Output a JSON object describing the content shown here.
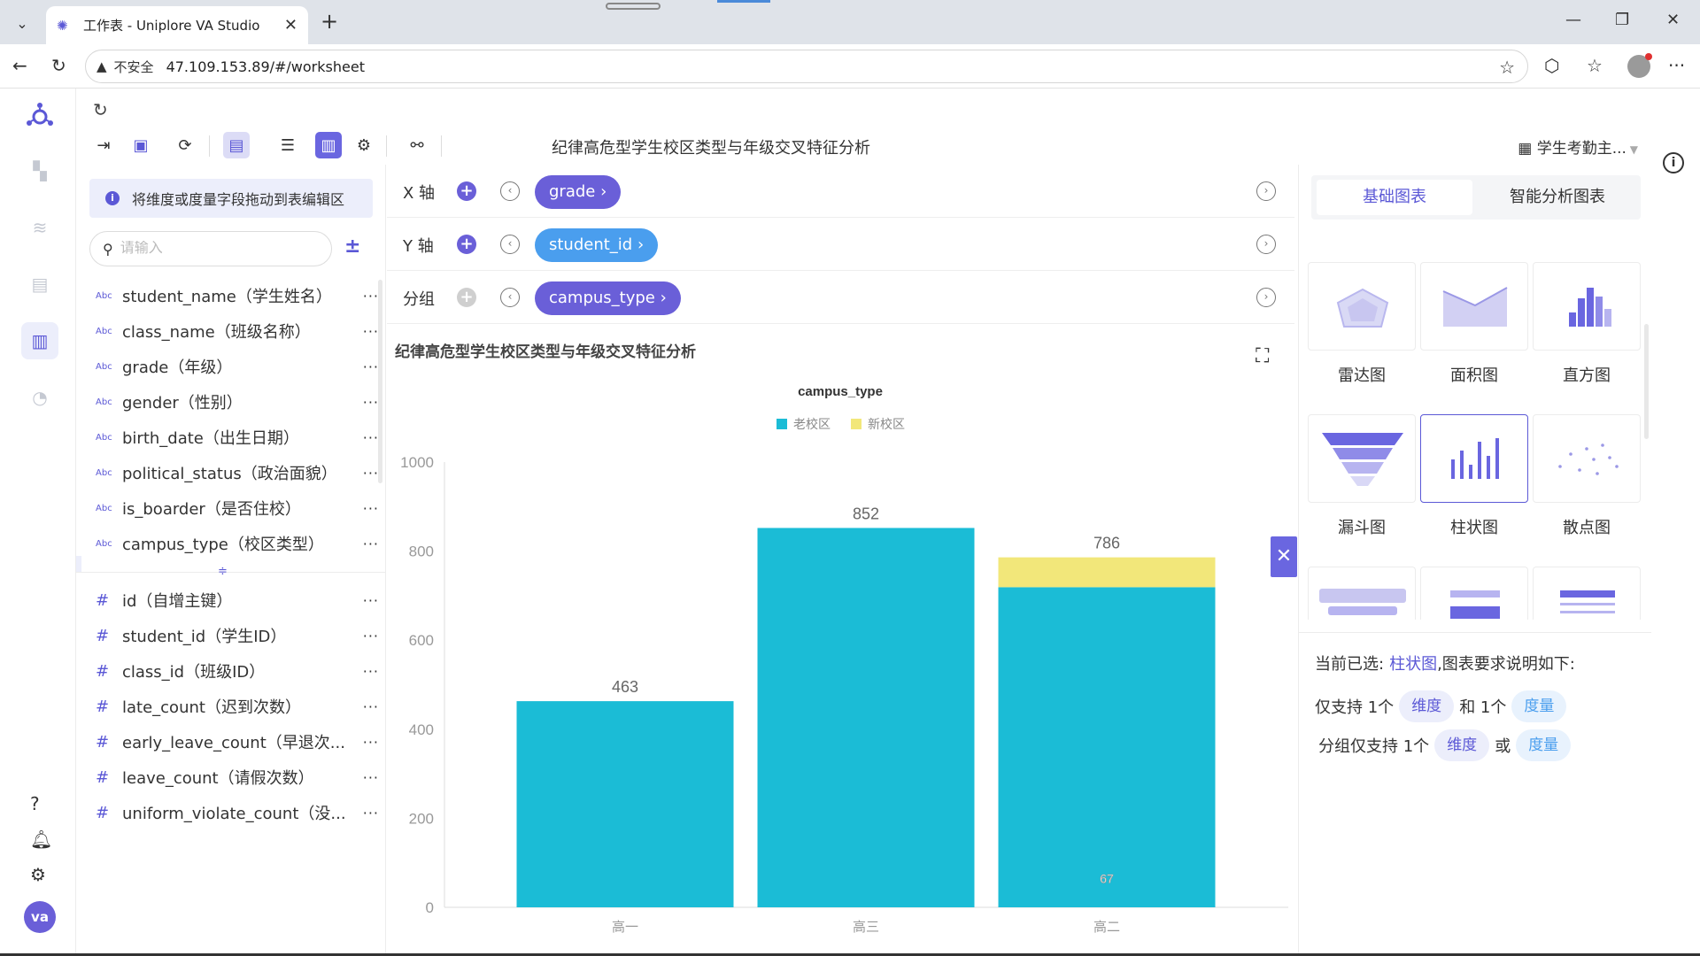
{
  "browser": {
    "tab_title": "工作表 - Uniplore VA Studio",
    "insecure_label": "不安全",
    "url": "47.109.153.89/#/worksheet"
  },
  "toolbar": {
    "worksheet_title": "纪律高危型学生校区类型与年级交叉特征分析",
    "dataset_name": "学生考勤主..."
  },
  "fields": {
    "drag_hint": "将维度或度量字段拖动到表编辑区",
    "search_placeholder": "请输入",
    "dimensions": [
      {
        "type": "Abc",
        "label": "student_name（学生姓名）"
      },
      {
        "type": "Abc",
        "label": "class_name（班级名称）"
      },
      {
        "type": "Abc",
        "label": "grade（年级）"
      },
      {
        "type": "Abc",
        "label": "gender（性别）"
      },
      {
        "type": "Abc",
        "label": "birth_date（出生日期）"
      },
      {
        "type": "Abc",
        "label": "political_status（政治面貌）"
      },
      {
        "type": "Abc",
        "label": "is_boarder（是否住校）"
      },
      {
        "type": "Abc",
        "label": "campus_type（校区类型）"
      }
    ],
    "measures": [
      {
        "type": "#",
        "label": "id（自增主键）"
      },
      {
        "type": "#",
        "label": "student_id（学生ID）"
      },
      {
        "type": "#",
        "label": "class_id（班级ID）"
      },
      {
        "type": "#",
        "label": "late_count（迟到次数）"
      },
      {
        "type": "#",
        "label": "early_leave_count（早退次..."
      },
      {
        "type": "#",
        "label": "leave_count（请假次数）"
      },
      {
        "type": "#",
        "label": "uniform_violate_count（没..."
      }
    ],
    "more": "···"
  },
  "axes": {
    "x": {
      "label": "X 轴",
      "field": "grade ›"
    },
    "y": {
      "label": "Y 轴",
      "field": "student_id ›"
    },
    "group": {
      "label": "分组",
      "field": "campus_type ›"
    }
  },
  "chart_title": "纪律高危型学生校区类型与年级交叉特征分析",
  "chart_data": {
    "type": "bar",
    "stacked": true,
    "legend_title": "campus_type",
    "legend_position": "top-center",
    "categories": [
      "高一",
      "高三",
      "高二"
    ],
    "series": [
      {
        "name": "老校区",
        "color": "#1bbcd6",
        "values": [
          463,
          852,
          719
        ]
      },
      {
        "name": "新校区",
        "color": "#f2e77a",
        "values": [
          0,
          0,
          67
        ]
      }
    ],
    "totals": [
      463,
      852,
      786
    ],
    "segment_labels": [
      null,
      null,
      67
    ],
    "ylim": [
      0,
      1000
    ],
    "yticks": [
      0,
      200,
      400,
      600,
      800,
      1000
    ],
    "grid": false
  },
  "chart_panel": {
    "tab_basic": "基础图表",
    "tab_smart": "智能分析图表",
    "types": [
      "雷达图",
      "面积图",
      "直方图",
      "漏斗图",
      "柱状图",
      "散点图"
    ],
    "selected": "柱状图",
    "current_prefix": "当前已选:",
    "current_suffix": ",图表要求说明如下:",
    "req1_a": "仅支持 1个",
    "req1_b": "和 1个",
    "req2_a": "分组仅支持 1个",
    "req2_b": "或",
    "dim_tag": "维度",
    "mea_tag": "度量"
  },
  "rail": {
    "avatar": "va"
  },
  "colors": {
    "accent": "#5b58d6",
    "bar_old": "#1bbcd6",
    "bar_new": "#f2e77a"
  }
}
